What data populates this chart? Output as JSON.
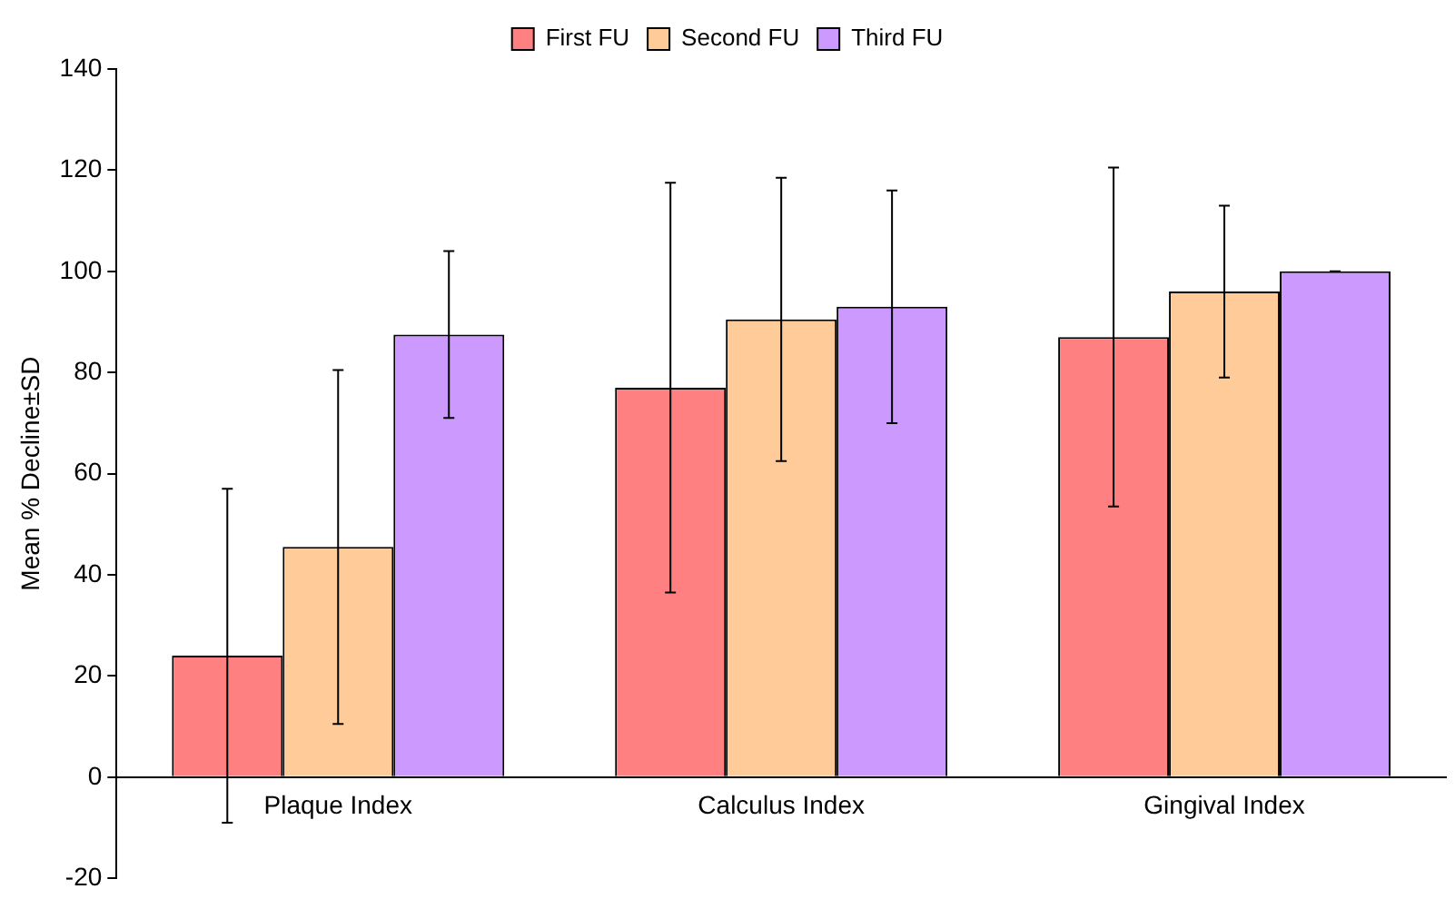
{
  "chart_data": {
    "type": "bar",
    "ylabel": "Mean % Decline±SD",
    "categories": [
      "Plaque Index",
      "Calculus Index",
      "Gingival Index"
    ],
    "series": [
      {
        "name": "First FU",
        "color": "#ff8080",
        "values": [
          24,
          77,
          87
        ],
        "errors": [
          33,
          40.5,
          33.5
        ]
      },
      {
        "name": "Second FU",
        "color": "#ffcc99",
        "values": [
          45.5,
          90.5,
          96
        ],
        "errors": [
          35,
          28,
          17
        ]
      },
      {
        "name": "Third FU",
        "color": "#cc99ff",
        "values": [
          87.5,
          93,
          100
        ],
        "errors": [
          16.5,
          23,
          0
        ]
      }
    ],
    "ylim": [
      -20,
      140
    ],
    "yticks": [
      -20,
      0,
      20,
      40,
      60,
      80,
      100,
      120,
      140
    ],
    "grid": false,
    "legend": "top"
  }
}
